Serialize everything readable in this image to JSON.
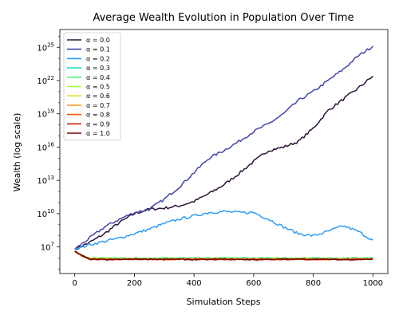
{
  "chart_data": {
    "type": "line",
    "title": "Average Wealth Evolution in Population Over Time",
    "xlabel": "Simulation Steps",
    "ylabel": "Wealth (log scale)",
    "xlim": [
      -50,
      1050
    ],
    "ylim_log10": [
      4.6,
      26.6
    ],
    "yscale": "log",
    "x_ticks": [
      0,
      200,
      400,
      600,
      800,
      1000
    ],
    "y_ticks": [
      {
        "exp": 7,
        "label_base": "10",
        "label_exp": "7"
      },
      {
        "exp": 10,
        "label_base": "10",
        "label_exp": "10"
      },
      {
        "exp": 13,
        "label_base": "10",
        "label_exp": "13"
      },
      {
        "exp": 16,
        "label_base": "10",
        "label_exp": "16"
      },
      {
        "exp": 19,
        "label_base": "10",
        "label_exp": "19"
      },
      {
        "exp": 22,
        "label_base": "10",
        "label_exp": "22"
      },
      {
        "exp": 25,
        "label_base": "10",
        "label_exp": "25"
      }
    ],
    "legend_position": "top-left",
    "series": [
      {
        "name": "α = 0.0",
        "color": "#30123b",
        "x": [
          0,
          50,
          100,
          150,
          200,
          250,
          300,
          350,
          400,
          450,
          500,
          550,
          600,
          650,
          700,
          750,
          800,
          850,
          900,
          950,
          1000
        ],
        "log10_y": [
          6.8,
          7.4,
          8.2,
          9.2,
          10.0,
          10.4,
          10.5,
          10.7,
          11.1,
          11.8,
          12.6,
          13.6,
          14.7,
          15.7,
          16.0,
          16.5,
          17.7,
          19.3,
          20.3,
          21.3,
          22.4
        ]
      },
      {
        "name": "α = 0.1",
        "color": "#4145ab",
        "x": [
          0,
          50,
          100,
          150,
          200,
          250,
          300,
          350,
          400,
          450,
          500,
          550,
          600,
          650,
          700,
          750,
          800,
          850,
          900,
          950,
          1000
        ],
        "log10_y": [
          6.8,
          7.8,
          8.8,
          9.5,
          10.1,
          10.4,
          11.3,
          12.4,
          13.7,
          15.0,
          15.7,
          16.5,
          17.4,
          18.1,
          19.0,
          20.2,
          21.0,
          22.0,
          23.0,
          24.2,
          25.1
        ]
      },
      {
        "name": "α = 0.2",
        "color": "#2e9df5",
        "x": [
          0,
          50,
          100,
          150,
          200,
          250,
          300,
          350,
          400,
          450,
          500,
          550,
          600,
          650,
          700,
          750,
          800,
          850,
          900,
          950,
          1000
        ],
        "log10_y": [
          6.8,
          7.2,
          7.5,
          7.8,
          8.2,
          8.6,
          9.1,
          9.5,
          9.8,
          10.1,
          10.2,
          10.1,
          10.1,
          9.5,
          8.8,
          8.2,
          8.0,
          8.4,
          8.9,
          8.4,
          7.6
        ]
      },
      {
        "name": "α = 0.3",
        "color": "#1ae4b6",
        "x": [
          0,
          25,
          50,
          100,
          200,
          300,
          400,
          500,
          600,
          700,
          800,
          900,
          1000
        ],
        "log10_y": [
          6.6,
          6.2,
          6.0,
          6.0,
          6.0,
          6.0,
          6.0,
          6.0,
          6.0,
          6.0,
          6.0,
          6.0,
          6.0
        ]
      },
      {
        "name": "α = 0.4",
        "color": "#4ff970",
        "x": [
          0,
          25,
          50,
          100,
          200,
          300,
          400,
          500,
          600,
          700,
          800,
          900,
          1000
        ],
        "log10_y": [
          6.6,
          6.2,
          6.0,
          6.0,
          5.95,
          6.0,
          5.95,
          6.0,
          5.95,
          6.0,
          6.0,
          5.95,
          6.0
        ]
      },
      {
        "name": "α = 0.5",
        "color": "#a4fc3c",
        "x": [
          0,
          25,
          50,
          100,
          200,
          300,
          400,
          500,
          600,
          700,
          800,
          900,
          1000
        ],
        "log10_y": [
          6.6,
          6.2,
          5.95,
          5.95,
          5.95,
          5.95,
          5.95,
          5.95,
          5.95,
          5.95,
          5.95,
          5.95,
          5.95
        ]
      },
      {
        "name": "α = 0.6",
        "color": "#e1dd37",
        "x": [
          0,
          25,
          50,
          100,
          200,
          300,
          400,
          500,
          600,
          700,
          800,
          900,
          1000
        ],
        "log10_y": [
          6.6,
          6.2,
          5.95,
          5.9,
          5.95,
          5.9,
          5.95,
          5.9,
          5.95,
          5.9,
          5.95,
          5.9,
          5.95
        ]
      },
      {
        "name": "α = 0.7",
        "color": "#fe9b2d",
        "x": [
          0,
          25,
          50,
          100,
          200,
          300,
          400,
          500,
          600,
          700,
          800,
          900,
          1000
        ],
        "log10_y": [
          6.6,
          6.2,
          5.9,
          5.9,
          5.9,
          5.9,
          5.9,
          5.9,
          5.9,
          5.9,
          5.9,
          5.9,
          5.9
        ]
      },
      {
        "name": "α = 0.8",
        "color": "#f25c08",
        "x": [
          0,
          25,
          50,
          100,
          200,
          300,
          400,
          500,
          600,
          700,
          800,
          900,
          1000
        ],
        "log10_y": [
          6.6,
          6.2,
          5.9,
          5.9,
          5.9,
          5.85,
          5.9,
          5.9,
          5.85,
          5.9,
          5.85,
          5.9,
          5.9
        ]
      },
      {
        "name": "α = 0.9",
        "color": "#c52a03",
        "x": [
          0,
          25,
          50,
          100,
          200,
          300,
          400,
          500,
          600,
          700,
          800,
          900,
          1000
        ],
        "log10_y": [
          6.6,
          6.2,
          5.9,
          5.85,
          5.9,
          5.85,
          5.9,
          5.85,
          5.9,
          5.85,
          5.9,
          5.85,
          5.9
        ]
      },
      {
        "name": "α = 1.0",
        "color": "#7a0403",
        "x": [
          0,
          25,
          50,
          100,
          200,
          300,
          400,
          500,
          600,
          700,
          800,
          900,
          1000
        ],
        "log10_y": [
          6.6,
          6.2,
          5.9,
          5.85,
          5.9,
          5.9,
          5.85,
          5.9,
          5.85,
          5.9,
          5.9,
          5.85,
          5.9
        ]
      }
    ]
  }
}
